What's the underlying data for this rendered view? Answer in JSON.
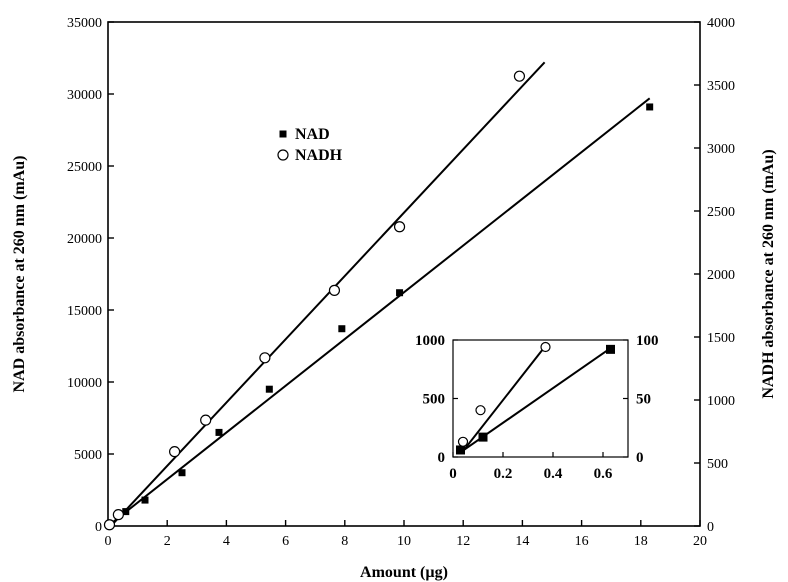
{
  "chart_data": [
    {
      "id": "main",
      "type": "scatter",
      "title": "",
      "xlabel": "Amount (µg)",
      "ylabel": "NAD absorbance at 260 nm (mAu)",
      "y2label": "NADH absorbance at 260 nm (mAu)",
      "xlim": [
        0,
        20
      ],
      "ylim": [
        0,
        35000
      ],
      "y2lim": [
        0,
        4000
      ],
      "xticks": [
        0,
        2,
        4,
        6,
        8,
        10,
        12,
        14,
        16,
        18,
        20
      ],
      "yticks": [
        0,
        5000,
        10000,
        15000,
        20000,
        25000,
        30000,
        35000
      ],
      "y2ticks": [
        0,
        500,
        1000,
        1500,
        2000,
        2500,
        3000,
        3500,
        4000
      ],
      "grid": false,
      "legend_position": "upper-left-center",
      "legend": [
        {
          "name": "NAD",
          "marker": "filled-square"
        },
        {
          "name": "NADH",
          "marker": "open-circle"
        }
      ],
      "series": [
        {
          "name": "NAD",
          "axis": "left",
          "marker": "filled-square",
          "x": [
            0.05,
            0.6,
            1.25,
            2.5,
            3.75,
            5.45,
            7.9,
            9.85,
            18.3
          ],
          "y": [
            100,
            1000,
            1800,
            3700,
            6500,
            9500,
            13700,
            16200,
            29100
          ],
          "fit_line": {
            "x": [
              0.0,
              18.3
            ],
            "y": [
              0,
              29700
            ]
          }
        },
        {
          "name": "NADH",
          "axis": "right",
          "marker": "open-circle",
          "x": [
            0.05,
            0.35,
            2.25,
            3.3,
            5.3,
            7.65,
            9.85,
            13.9
          ],
          "y": [
            10,
            90,
            590,
            840,
            1335,
            1870,
            2375,
            3570
          ],
          "fit_line": {
            "x": [
              0.1,
              14.75
            ],
            "y": [
              0,
              3680
            ]
          }
        }
      ]
    },
    {
      "id": "inset",
      "type": "scatter",
      "title": "",
      "xlabel": "",
      "ylabel": "",
      "xlim": [
        0,
        0.7
      ],
      "ylim": [
        0,
        1000
      ],
      "y2lim": [
        0,
        100
      ],
      "xticks": [
        0,
        0.2,
        0.4,
        0.6
      ],
      "xtick_labels": [
        "0",
        "0.2",
        "0.4",
        "0.6"
      ],
      "yticks": [
        0,
        500,
        1000
      ],
      "y2ticks": [
        0,
        50,
        100
      ],
      "grid": false,
      "series": [
        {
          "name": "NAD",
          "axis": "left",
          "marker": "filled-square",
          "x": [
            0.03,
            0.12,
            0.63
          ],
          "y": [
            60,
            170,
            920
          ],
          "fit_line": {
            "x": [
              0.03,
              0.63
            ],
            "y": [
              40,
              930
            ]
          }
        },
        {
          "name": "NADH",
          "axis": "right",
          "marker": "open-circle",
          "x": [
            0.04,
            0.11,
            0.37
          ],
          "y": [
            13,
            40,
            94
          ],
          "fit_line": {
            "x": [
              0.04,
              0.37
            ],
            "y": [
              5,
              95
            ]
          }
        }
      ]
    }
  ]
}
